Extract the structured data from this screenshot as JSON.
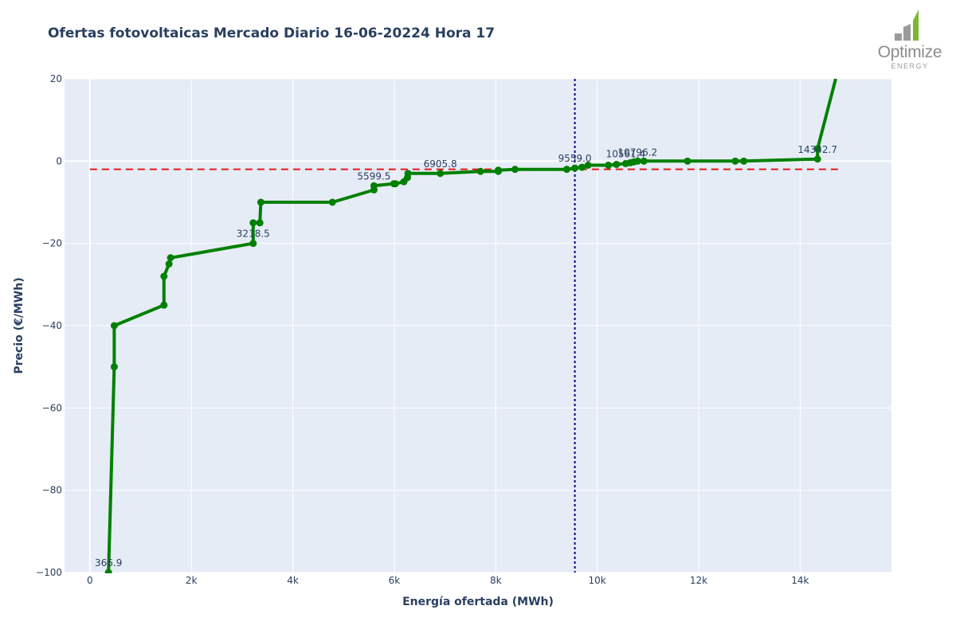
{
  "chart_data": {
    "type": "line",
    "title": "Ofertas fotovoltaicas Mercado Diario 16-06-20224 Hora 17",
    "xlabel": "Energía ofertada (MWh)",
    "ylabel": "Precio (€/MWh)",
    "xlim": [
      -500,
      15800
    ],
    "ylim": [
      -100,
      20
    ],
    "xticks": [
      0,
      2000,
      4000,
      6000,
      8000,
      10000,
      12000,
      14000
    ],
    "xtick_labels": [
      "0",
      "2k",
      "4k",
      "6k",
      "8k",
      "10k",
      "12k",
      "14k"
    ],
    "yticks": [
      -100,
      -80,
      -60,
      -40,
      -20,
      0,
      20
    ],
    "ytick_labels": [
      "−100",
      "−80",
      "−60",
      "−40",
      "−20",
      "0",
      "20"
    ],
    "grid": true,
    "series": [
      {
        "color": "#008000",
        "x": [
          366.9,
          480,
          480,
          1460,
          1460,
          1560,
          1590,
          3218.5,
          3218.5,
          3350,
          3370,
          4780,
          5599.5,
          5599.5,
          5990,
          6020,
          6190,
          6260,
          6270,
          6905.8,
          7700,
          8050,
          8050,
          8380,
          9400,
          9559.0,
          9700,
          9820,
          10220,
          10380,
          10561.4,
          10650,
          10720,
          10796.2,
          10920,
          11780,
          12720,
          12890,
          14342.7,
          14342.7,
          14700
        ],
        "y": [
          -100,
          -50,
          -40,
          -35,
          -28,
          -25,
          -23.5,
          -20,
          -15,
          -15,
          -10,
          -10,
          -7,
          -6,
          -5.5,
          -5.5,
          -5,
          -4,
          -3,
          -3,
          -2.5,
          -2.5,
          -2.2,
          -2,
          -2,
          -1.7,
          -1.5,
          -1,
          -1,
          -0.8,
          -0.6,
          -0.4,
          -0.2,
          0,
          0,
          0,
          0,
          0,
          0.5,
          3,
          20
        ]
      }
    ],
    "labels": [
      {
        "x": 366.9,
        "y": -100,
        "text": "366.9"
      },
      {
        "x": 3218.5,
        "y": -20,
        "text": "3218.5"
      },
      {
        "x": 5599.5,
        "y": -6,
        "text": "5599.5"
      },
      {
        "x": 6905.8,
        "y": -3,
        "text": "6905.8"
      },
      {
        "x": 9559.0,
        "y": -1.7,
        "text": "9559.0"
      },
      {
        "x": 10561.4,
        "y": -0.6,
        "text": "10561.4"
      },
      {
        "x": 10796.2,
        "y": -0.2,
        "text": "10796.2"
      },
      {
        "x": 14342.7,
        "y": 0.5,
        "text": "14342.7"
      }
    ],
    "hline": {
      "y": -2,
      "color": "#e31a1c"
    },
    "vline": {
      "x": 9559.0,
      "color": "#00008b"
    },
    "plot_bg": "#e5ecf6"
  },
  "logo": {
    "word": "Optimize",
    "sub": "ENERGY"
  }
}
